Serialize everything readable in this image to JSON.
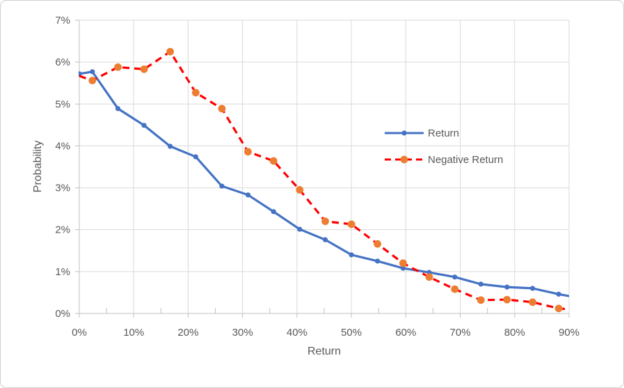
{
  "chart_data": {
    "type": "line",
    "title": "",
    "xlabel": "Return",
    "ylabel": "Probability",
    "grid": "both",
    "legend_position": "inside-right",
    "x_axis": {
      "min": 0,
      "max": 90,
      "major_step": 10,
      "minor_step": 5,
      "tick_values": [
        0,
        10,
        20,
        30,
        40,
        50,
        60,
        70,
        80,
        90
      ],
      "tick_labels": [
        "0%",
        "10%",
        "20%",
        "30%",
        "40%",
        "50%",
        "60%",
        "70%",
        "80%",
        "90%"
      ]
    },
    "y_axis": {
      "min": 0,
      "max": 7,
      "major_step": 1,
      "tick_values": [
        0,
        1,
        2,
        3,
        4,
        5,
        6,
        7
      ],
      "tick_labels": [
        "0%",
        "1%",
        "2%",
        "3%",
        "4%",
        "5%",
        "6%",
        "7%"
      ]
    },
    "x": [
      0,
      2.4,
      7.1,
      11.9,
      16.7,
      21.4,
      26.2,
      31.0,
      35.7,
      40.5,
      45.2,
      50.0,
      54.8,
      59.5,
      64.3,
      69.0,
      73.8,
      78.6,
      83.3,
      88.1,
      92.9
    ],
    "series": [
      {
        "name": "Return",
        "line_color": "#4472C4",
        "line_style": "solid",
        "marker_color": "#4472C4",
        "marker_size": "small",
        "markers_from_index": 0,
        "values": [
          5.72,
          5.77,
          4.89,
          4.49,
          3.99,
          3.74,
          3.04,
          2.83,
          2.43,
          2.01,
          1.76,
          1.4,
          1.25,
          1.08,
          0.98,
          0.87,
          0.7,
          0.63,
          0.6,
          0.46,
          0.35
        ]
      },
      {
        "name": "Negative Return",
        "line_color": "#FF0000",
        "line_style": "dashed",
        "marker_color": "#ED7D31",
        "marker_size": "large",
        "markers_from_index": 1,
        "values": [
          5.67,
          5.56,
          5.88,
          5.83,
          6.25,
          5.27,
          4.89,
          3.86,
          3.64,
          2.95,
          2.2,
          2.13,
          1.66,
          1.2,
          0.87,
          0.58,
          0.32,
          0.33,
          0.27,
          0.12,
          0.07
        ]
      }
    ]
  },
  "colors": {
    "gridline": "#D9D9D9",
    "axis": "#BFBFBF",
    "text": "#595959",
    "frame_border": "#D0CECE",
    "background": "#FFFFFF"
  }
}
